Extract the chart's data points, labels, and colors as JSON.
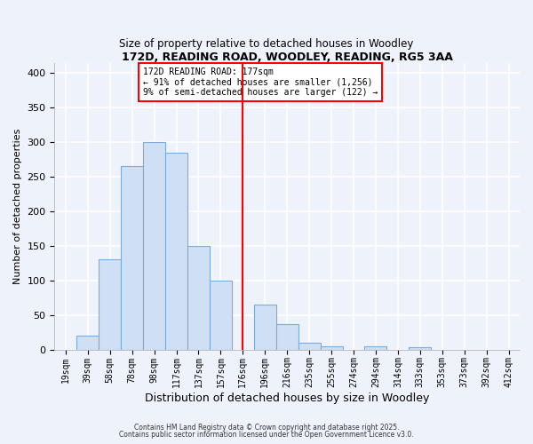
{
  "title": "172D, READING ROAD, WOODLEY, READING, RG5 3AA",
  "subtitle": "Size of property relative to detached houses in Woodley",
  "xlabel": "Distribution of detached houses by size in Woodley",
  "ylabel": "Number of detached properties",
  "bin_labels": [
    "19sqm",
    "39sqm",
    "58sqm",
    "78sqm",
    "98sqm",
    "117sqm",
    "137sqm",
    "157sqm",
    "176sqm",
    "196sqm",
    "216sqm",
    "235sqm",
    "255sqm",
    "274sqm",
    "294sqm",
    "314sqm",
    "333sqm",
    "353sqm",
    "373sqm",
    "392sqm",
    "412sqm"
  ],
  "bar_heights": [
    0,
    20,
    130,
    265,
    300,
    285,
    150,
    100,
    0,
    65,
    37,
    10,
    5,
    0,
    4,
    0,
    3,
    0,
    0,
    0,
    0
  ],
  "bar_color": "#cfe0f5",
  "bar_edge_color": "#7aabdc",
  "vline_bin": 8,
  "vline_color": "red",
  "annotation_title": "172D READING ROAD: 177sqm",
  "annotation_line1": "← 91% of detached houses are smaller (1,256)",
  "annotation_line2": "9% of semi-detached houses are larger (122) →",
  "annotation_box_color": "white",
  "annotation_box_edge_color": "red",
  "ylim": [
    0,
    415
  ],
  "yticks": [
    0,
    50,
    100,
    150,
    200,
    250,
    300,
    350,
    400
  ],
  "footer1": "Contains HM Land Registry data © Crown copyright and database right 2025.",
  "footer2": "Contains public sector information licensed under the Open Government Licence v3.0.",
  "bg_color": "#eef2fb",
  "plot_bg_color": "#eef2fb",
  "grid_color": "white"
}
